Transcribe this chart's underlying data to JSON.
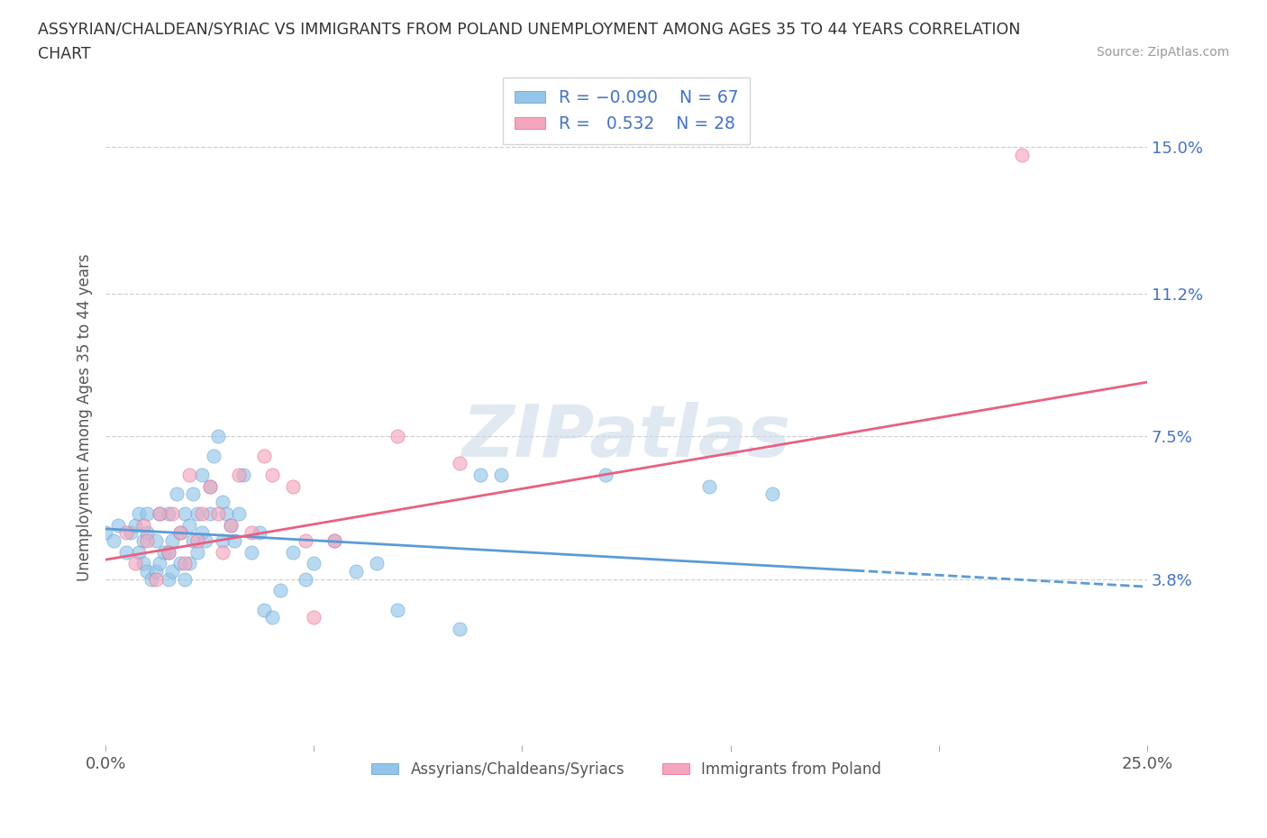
{
  "title_line1": "ASSYRIAN/CHALDEAN/SYRIAC VS IMMIGRANTS FROM POLAND UNEMPLOYMENT AMONG AGES 35 TO 44 YEARS CORRELATION",
  "title_line2": "CHART",
  "source": "Source: ZipAtlas.com",
  "ylabel": "Unemployment Among Ages 35 to 44 years",
  "xlim": [
    0.0,
    0.25
  ],
  "ylim": [
    -0.005,
    0.165
  ],
  "ytick_positions": [
    0.038,
    0.075,
    0.112,
    0.15
  ],
  "yticklabels": [
    "3.8%",
    "7.5%",
    "11.2%",
    "15.0%"
  ],
  "grid_color": "#d0d0d0",
  "background_color": "#ffffff",
  "blue_color": "#92C5E8",
  "pink_color": "#F4A6BE",
  "blue_line_color": "#5B9BD5",
  "pink_line_color": "#E86080",
  "legend_label1": "Assyrians/Chaldeans/Syriacs",
  "legend_label2": "Immigrants from Poland",
  "watermark_text": "ZIPatlas",
  "blue_line_x0": 0.0,
  "blue_line_y0": 0.051,
  "blue_line_x1": 0.25,
  "blue_line_y1": 0.036,
  "blue_line_solid_end": 0.18,
  "pink_line_x0": 0.0,
  "pink_line_y0": 0.043,
  "pink_line_x1": 0.25,
  "pink_line_y1": 0.089,
  "blue_scatter_x": [
    0.0,
    0.002,
    0.003,
    0.005,
    0.006,
    0.007,
    0.008,
    0.008,
    0.009,
    0.009,
    0.01,
    0.01,
    0.01,
    0.011,
    0.012,
    0.012,
    0.013,
    0.013,
    0.014,
    0.015,
    0.015,
    0.015,
    0.016,
    0.016,
    0.017,
    0.018,
    0.018,
    0.019,
    0.019,
    0.02,
    0.02,
    0.021,
    0.021,
    0.022,
    0.022,
    0.023,
    0.023,
    0.024,
    0.025,
    0.025,
    0.026,
    0.027,
    0.028,
    0.028,
    0.029,
    0.03,
    0.031,
    0.032,
    0.033,
    0.035,
    0.037,
    0.038,
    0.04,
    0.042,
    0.045,
    0.048,
    0.05,
    0.055,
    0.06,
    0.065,
    0.07,
    0.085,
    0.09,
    0.095,
    0.12,
    0.145,
    0.16
  ],
  "blue_scatter_y": [
    0.05,
    0.048,
    0.052,
    0.045,
    0.05,
    0.052,
    0.045,
    0.055,
    0.042,
    0.048,
    0.04,
    0.05,
    0.055,
    0.038,
    0.04,
    0.048,
    0.042,
    0.055,
    0.045,
    0.038,
    0.045,
    0.055,
    0.04,
    0.048,
    0.06,
    0.042,
    0.05,
    0.038,
    0.055,
    0.042,
    0.052,
    0.048,
    0.06,
    0.045,
    0.055,
    0.05,
    0.065,
    0.048,
    0.055,
    0.062,
    0.07,
    0.075,
    0.058,
    0.048,
    0.055,
    0.052,
    0.048,
    0.055,
    0.065,
    0.045,
    0.05,
    0.03,
    0.028,
    0.035,
    0.045,
    0.038,
    0.042,
    0.048,
    0.04,
    0.042,
    0.03,
    0.025,
    0.065,
    0.065,
    0.065,
    0.062,
    0.06
  ],
  "pink_scatter_x": [
    0.005,
    0.007,
    0.009,
    0.01,
    0.012,
    0.013,
    0.015,
    0.016,
    0.018,
    0.019,
    0.02,
    0.022,
    0.023,
    0.025,
    0.027,
    0.028,
    0.03,
    0.032,
    0.035,
    0.038,
    0.04,
    0.045,
    0.048,
    0.05,
    0.055,
    0.07,
    0.085,
    0.22
  ],
  "pink_scatter_y": [
    0.05,
    0.042,
    0.052,
    0.048,
    0.038,
    0.055,
    0.045,
    0.055,
    0.05,
    0.042,
    0.065,
    0.048,
    0.055,
    0.062,
    0.055,
    0.045,
    0.052,
    0.065,
    0.05,
    0.07,
    0.065,
    0.062,
    0.048,
    0.028,
    0.048,
    0.075,
    0.068,
    0.148
  ]
}
